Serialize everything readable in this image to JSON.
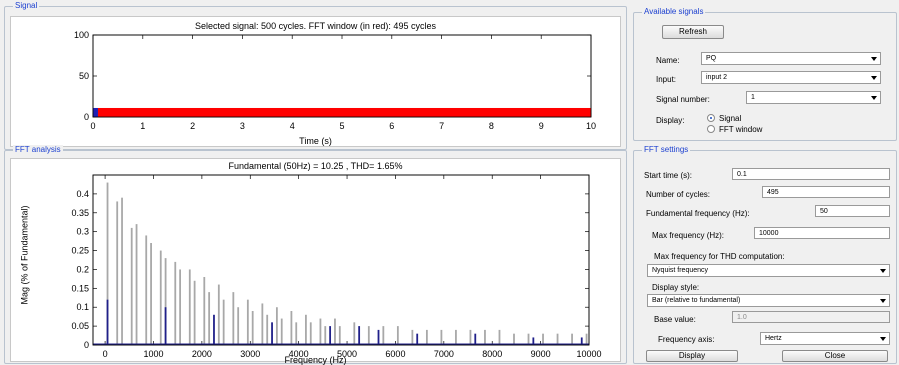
{
  "signal_panel": {
    "title": "Signal",
    "chart_title": "Selected signal: 500 cycles. FFT window (in red): 495 cycles",
    "xlabel": "Time (s)"
  },
  "fft_panel": {
    "title": "FFT analysis",
    "chart_title": "Fundamental (50Hz) = 10.25 , THD= 1.65%",
    "ylabel": "Mag (% of Fundamental)",
    "xlabel": "Frequency (Hz)"
  },
  "available_signals": {
    "title": "Available signals",
    "refresh_label": "Refresh",
    "name_label": "Name:",
    "name_value": "PQ",
    "input_label": "Input:",
    "input_value": "input 2",
    "signal_number_label": "Signal number:",
    "signal_number_value": "1",
    "display_label": "Display:",
    "display_signal_label": "Signal",
    "display_fft_label": "FFT window",
    "display_selected": "Signal"
  },
  "fft_settings": {
    "title": "FFT settings",
    "start_time_label": "Start time (s):",
    "start_time_value": "0.1",
    "cycles_label": "Number of cycles:",
    "cycles_value": "495",
    "fund_freq_label": "Fundamental frequency (Hz):",
    "fund_freq_value": "50",
    "max_freq_label": "Max frequency (Hz):",
    "max_freq_value": "10000",
    "thd_label": "Max frequency for THD computation:",
    "thd_value": "Nyquist frequency",
    "display_style_label": "Display style:",
    "display_style_value": "Bar (relative to fundamental)",
    "base_value_label": "Base value:",
    "base_value_value": "1.0",
    "freq_axis_label": "Frequency axis:",
    "freq_axis_value": "Hertz",
    "display_button": "Display",
    "close_button": "Close"
  },
  "chart_data": [
    {
      "type": "area",
      "title": "Selected signal: 500 cycles. FFT window (in red): 495 cycles",
      "xlabel": "Time (s)",
      "ylabel": "",
      "xlim": [
        0,
        10
      ],
      "ylim": [
        0,
        100
      ],
      "xticks": [
        0,
        1,
        2,
        3,
        4,
        5,
        6,
        7,
        8,
        9,
        10
      ],
      "yticks": [
        0,
        50,
        100
      ],
      "series": [
        {
          "color": "#1f1fb4",
          "x": [
            0,
            0.1
          ],
          "y_min": -11,
          "y_max": 11
        },
        {
          "color": "#ff0000",
          "x": [
            0.1,
            10
          ],
          "y_min": -11,
          "y_max": 11
        }
      ]
    },
    {
      "type": "bar",
      "title": "Fundamental (50Hz) = 10.25 , THD= 1.65%",
      "xlabel": "Frequency (Hz)",
      "ylabel": "Mag (% of Fundamental)",
      "xlim": [
        -250,
        10000
      ],
      "ylim": [
        0,
        0.45
      ],
      "xticks": [
        0,
        1000,
        2000,
        3000,
        4000,
        5000,
        6000,
        7000,
        8000,
        9000,
        10000
      ],
      "yticks": [
        0,
        0.05,
        0.1,
        0.15,
        0.2,
        0.25,
        0.3,
        0.35,
        0.4
      ],
      "series": [
        {
          "color": "#a8a8a8",
          "x": [
            50,
            250,
            350,
            550,
            650,
            850,
            950,
            1150,
            1250,
            1450,
            1550,
            1750,
            1850,
            2050,
            2150,
            2350,
            2450,
            2650,
            2750,
            2950,
            3050,
            3250,
            3350,
            3550,
            3650,
            3850,
            3950,
            4150,
            4250,
            4450,
            4550,
            4750,
            4850,
            5150,
            5450,
            5750,
            6050,
            6350,
            6650,
            6950,
            7250,
            7550,
            7850,
            8150,
            8450,
            8750,
            9050,
            9350,
            9650,
            9950
          ],
          "values": [
            0.43,
            0.38,
            0.39,
            0.31,
            0.32,
            0.29,
            0.27,
            0.25,
            0.23,
            0.22,
            0.2,
            0.2,
            0.17,
            0.18,
            0.14,
            0.16,
            0.12,
            0.14,
            0.1,
            0.12,
            0.09,
            0.11,
            0.08,
            0.1,
            0.07,
            0.09,
            0.06,
            0.08,
            0.06,
            0.07,
            0.05,
            0.07,
            0.05,
            0.06,
            0.05,
            0.05,
            0.05,
            0.04,
            0.04,
            0.04,
            0.04,
            0.04,
            0.04,
            0.04,
            0.03,
            0.03,
            0.03,
            0.03,
            0.03,
            0.03
          ]
        },
        {
          "color": "#20208a",
          "x": [
            50,
            1250,
            2250,
            3450,
            4650,
            5250,
            5650,
            6450,
            7650,
            8850,
            9850
          ],
          "values": [
            0.12,
            0.1,
            0.08,
            0.06,
            0.05,
            0.05,
            0.04,
            0.03,
            0.03,
            0.02,
            0.02
          ]
        }
      ]
    }
  ]
}
